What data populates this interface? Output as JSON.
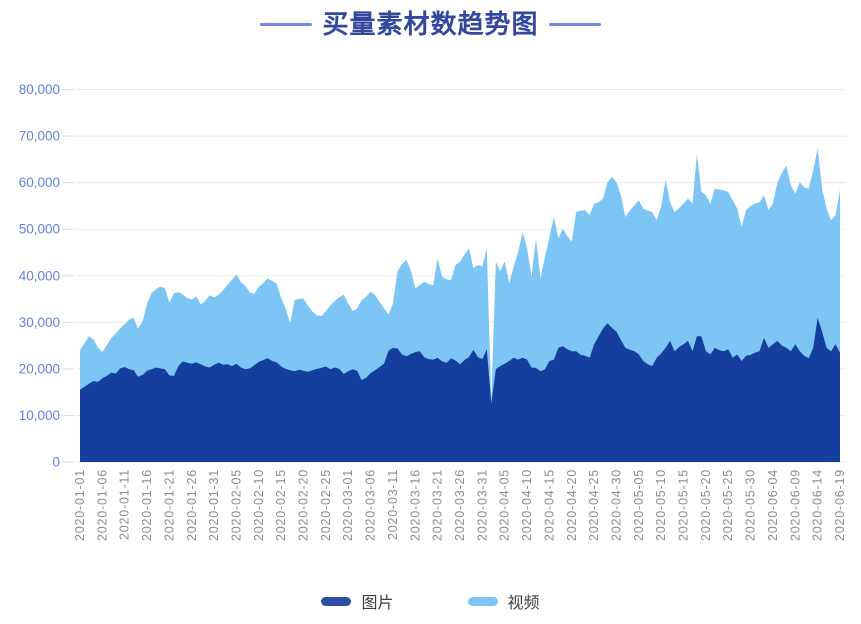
{
  "title": {
    "text": "买量素材数趋势图"
  },
  "legend": {
    "items": [
      {
        "label": "图片",
        "color": "#2B4FA7"
      },
      {
        "label": "视频",
        "color": "#7CC5F5"
      }
    ]
  },
  "axis": {
    "y_tick_labels": [
      "0",
      "10,000",
      "20,000",
      "30,000",
      "40,000",
      "50,000",
      "60,000",
      "70,000",
      "80,000"
    ],
    "y_label_color": "#6280E0",
    "x_label_color": "#8C8C8C",
    "grid_color": "#EAEAEC",
    "tick_color": "#DADADA"
  },
  "chart_data": {
    "type": "area",
    "stacked": true,
    "title": "买量素材数趋势图",
    "xlabel": "",
    "ylabel": "",
    "ylim": [
      0,
      80000
    ],
    "grid": true,
    "legend_position": "bottom",
    "start_date": "2020-01-01",
    "end_date": "2020-06-19",
    "x_tick_interval_days": 5,
    "x_tick_labels": [
      "2020-01-01",
      "2020-01-06",
      "2020-01-11",
      "2020-01-16",
      "2020-01-21",
      "2020-01-26",
      "2020-01-31",
      "2020-02-05",
      "2020-02-10",
      "2020-02-15",
      "2020-02-20",
      "2020-02-25",
      "2020-03-01",
      "2020-03-06",
      "2020-03-11",
      "2020-03-16",
      "2020-03-21",
      "2020-03-26",
      "2020-03-31",
      "2020-04-05",
      "2020-04-10",
      "2020-04-15",
      "2020-04-20",
      "2020-04-25",
      "2020-04-30",
      "2020-05-05",
      "2020-05-10",
      "2020-05-15",
      "2020-05-20",
      "2020-05-25",
      "2020-05-30",
      "2020-06-04",
      "2020-06-09",
      "2020-06-14",
      "2020-06-19"
    ],
    "series": [
      {
        "name": "图片",
        "color": "#143F9E",
        "values": [
          15500,
          16200,
          16800,
          17400,
          17200,
          18000,
          18500,
          19200,
          19000,
          20100,
          20400,
          19900,
          19700,
          18300,
          18700,
          19600,
          19900,
          20300,
          20100,
          19900,
          18600,
          18500,
          20600,
          21600,
          21300,
          21100,
          21400,
          21000,
          20500,
          20300,
          20900,
          21300,
          20900,
          21000,
          20600,
          21100,
          20300,
          19900,
          20100,
          20800,
          21500,
          21900,
          22300,
          21700,
          21400,
          20500,
          20000,
          19700,
          19500,
          19800,
          19600,
          19400,
          19700,
          20000,
          20200,
          20500,
          19900,
          20300,
          20000,
          18900,
          19500,
          19900,
          19600,
          17600,
          18100,
          19100,
          19700,
          20400,
          21100,
          23900,
          24500,
          24400,
          23100,
          22700,
          23200,
          23600,
          23800,
          22500,
          22100,
          22000,
          22400,
          21600,
          21300,
          22300,
          21800,
          21000,
          21900,
          22500,
          24100,
          22500,
          22100,
          24200,
          12600,
          19900,
          20600,
          21100,
          21700,
          22400,
          22000,
          22400,
          22000,
          20300,
          20200,
          19500,
          19900,
          21700,
          22000,
          24500,
          24900,
          24200,
          23800,
          23800,
          23000,
          22800,
          22400,
          25300,
          27000,
          28700,
          29800,
          28800,
          28000,
          26200,
          24500,
          24100,
          23800,
          23100,
          21700,
          21000,
          20600,
          22400,
          23300,
          24500,
          26000,
          23800,
          24700,
          25300,
          26000,
          23800,
          27000,
          27000,
          23800,
          23100,
          24500,
          24000,
          23800,
          24200,
          22400,
          23100,
          21700,
          22800,
          23000,
          23500,
          23800,
          26700,
          24500,
          25300,
          26000,
          25000,
          24500,
          23800,
          25300,
          23800,
          22800,
          22300,
          24500,
          31000,
          28000,
          24500,
          23800,
          25300,
          23500
        ]
      },
      {
        "name": "视频",
        "color": "#7CC5F5",
        "values": [
          8500,
          9300,
          10200,
          8900,
          7400,
          5600,
          6600,
          7400,
          8600,
          8600,
          9200,
          10700,
          11300,
          10300,
          11500,
          14500,
          16400,
          16800,
          17600,
          17400,
          15600,
          17700,
          15900,
          14400,
          13900,
          13800,
          14200,
          12900,
          14100,
          15500,
          14500,
          14600,
          16000,
          17100,
          18500,
          19200,
          18300,
          17900,
          16300,
          15300,
          16100,
          16500,
          17100,
          17200,
          16900,
          14700,
          13000,
          10100,
          15300,
          15200,
          15500,
          14100,
          12600,
          11500,
          11100,
          11900,
          13800,
          14300,
          15400,
          17000,
          14600,
          12500,
          13400,
          17200,
          17400,
          17500,
          16100,
          14000,
          11900,
          7800,
          9500,
          16500,
          19400,
          20700,
          18000,
          13700,
          14200,
          16200,
          16100,
          16000,
          21300,
          18200,
          17900,
          16800,
          20500,
          22000,
          22600,
          23400,
          17500,
          19800,
          19900,
          21700,
          500,
          23100,
          20400,
          21900,
          16700,
          19500,
          23000,
          27000,
          23900,
          19500,
          27800,
          19900,
          24100,
          26600,
          30600,
          23500,
          25200,
          24300,
          23500,
          29900,
          31000,
          31300,
          30600,
          30200,
          28800,
          27900,
          30300,
          32400,
          32100,
          31100,
          28100,
          29900,
          31300,
          33100,
          32700,
          33000,
          33100,
          29500,
          31700,
          36000,
          29800,
          29900,
          29800,
          30200,
          30600,
          31700,
          39200,
          31000,
          33500,
          32400,
          34200,
          34500,
          34500,
          33800,
          33800,
          31300,
          28800,
          31300,
          32000,
          32000,
          32000,
          30600,
          29600,
          30200,
          34100,
          37000,
          39200,
          35600,
          32300,
          36300,
          36200,
          36400,
          38100,
          36300,
          30700,
          29900,
          28100,
          27700,
          35000
        ]
      }
    ]
  }
}
